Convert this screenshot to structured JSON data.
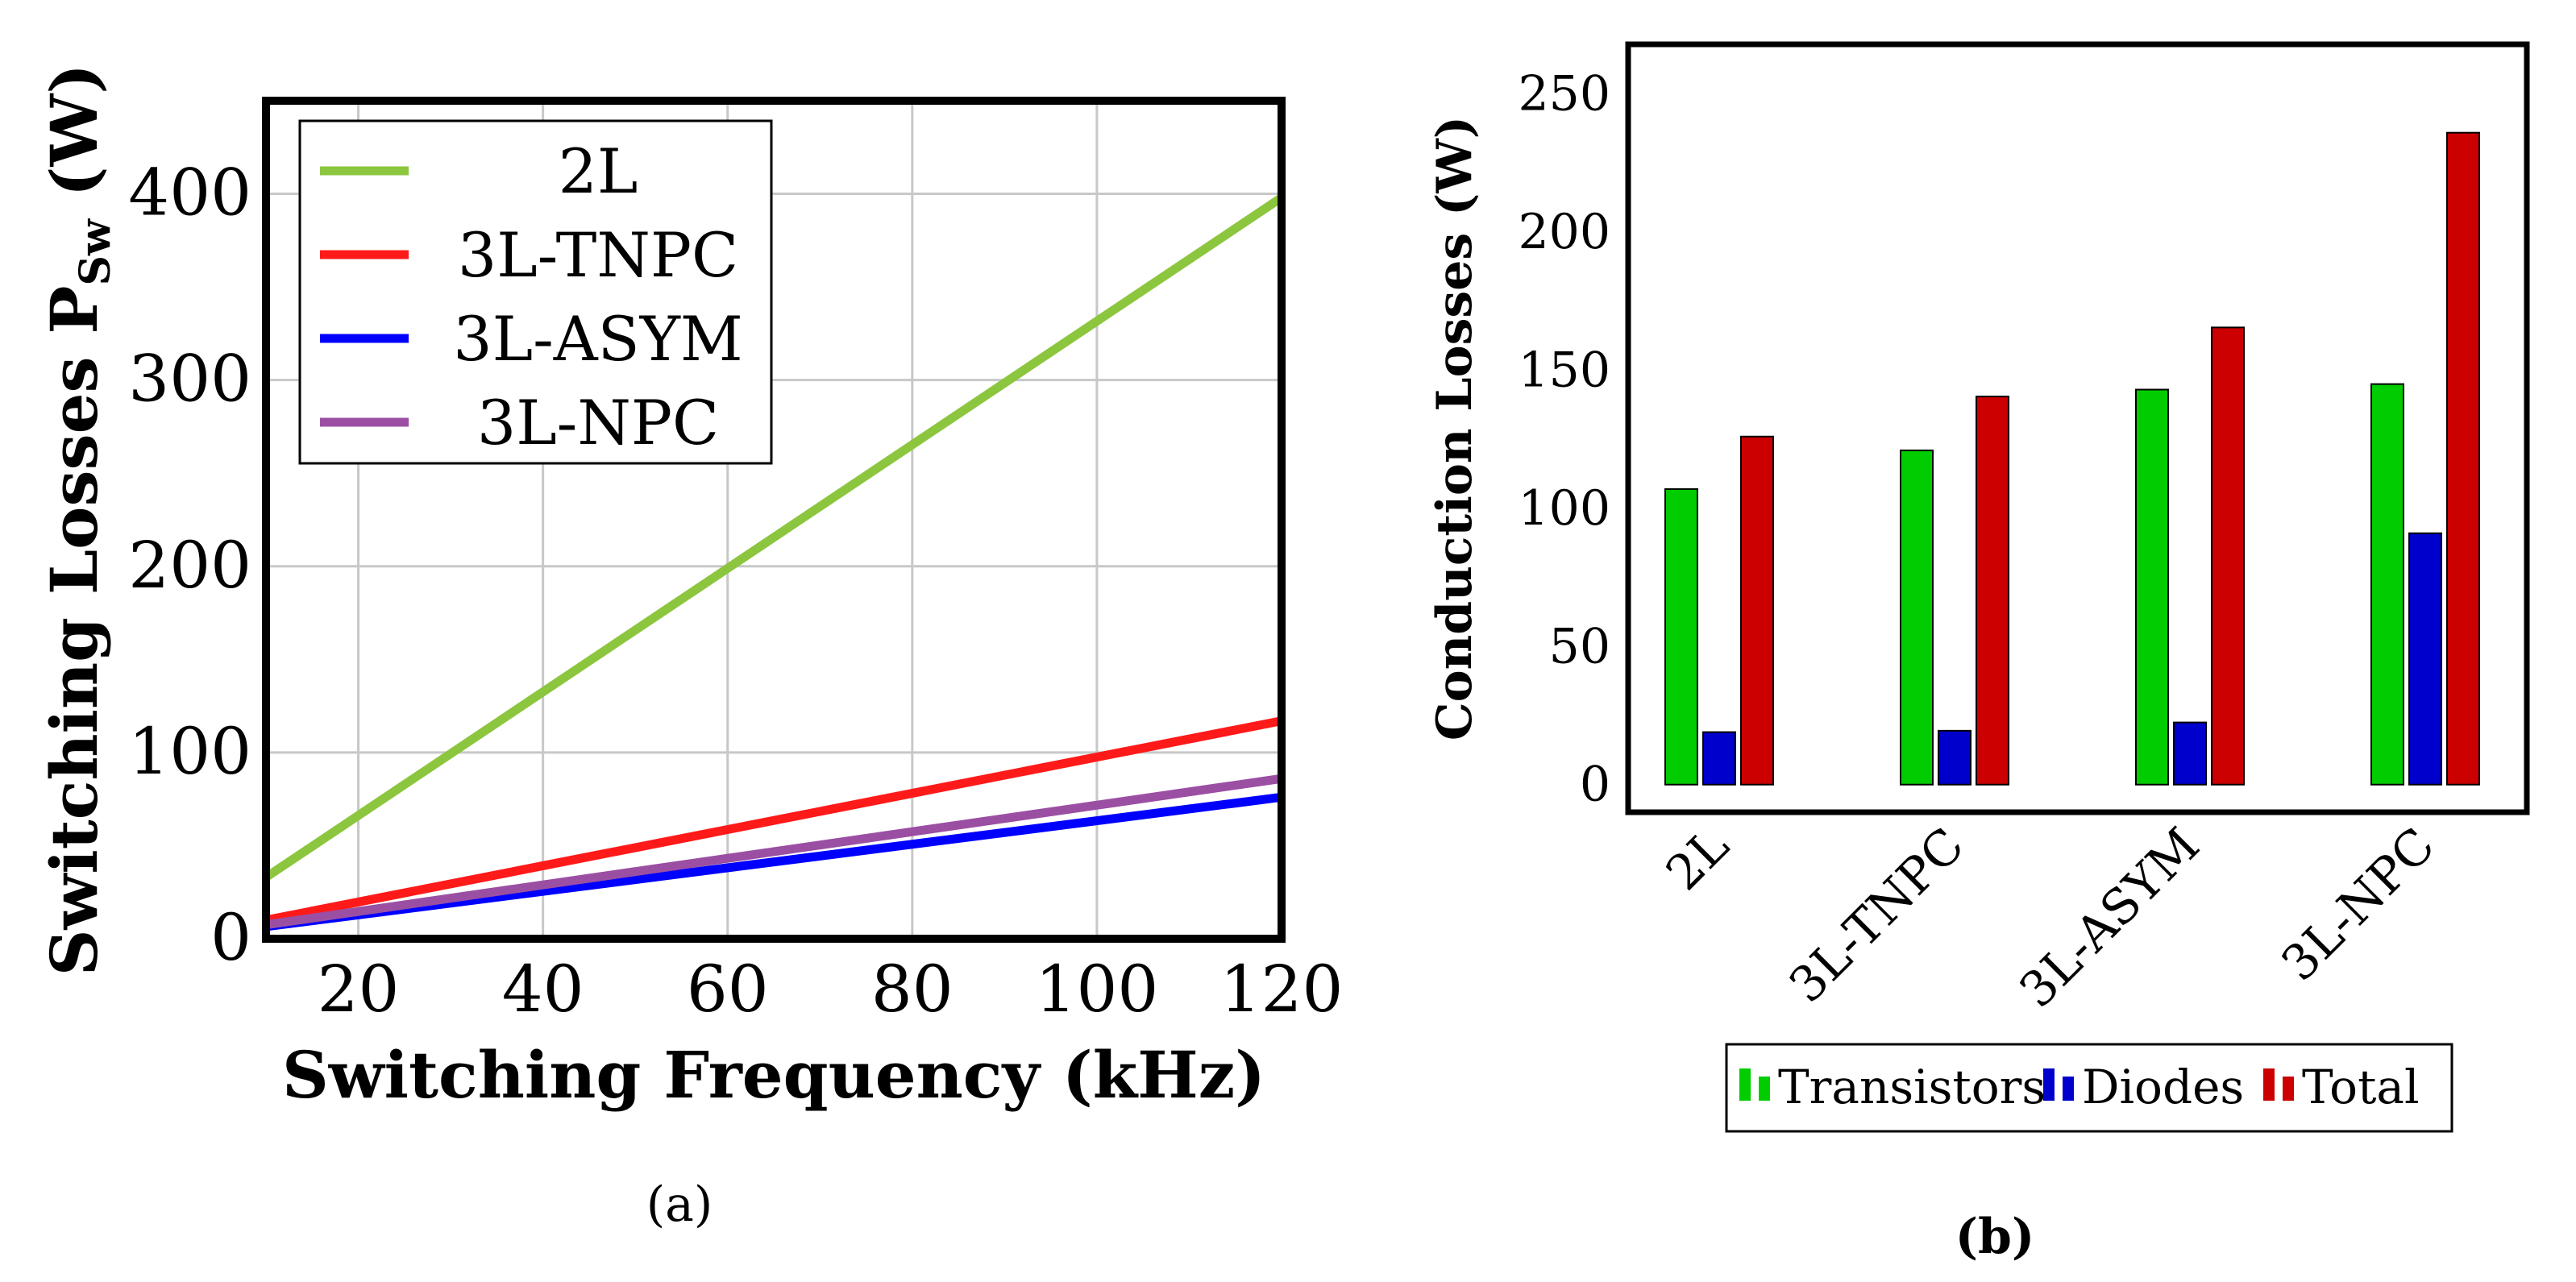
{
  "chart_data": [
    {
      "type": "line",
      "title": "",
      "xlabel": "Switching Frequency (kHz)",
      "ylabel": "Switching Losses P",
      "ylabel_subscript": "Sw",
      "ylabel_unit": "(W)",
      "xlim": [
        10,
        120
      ],
      "ylim": [
        0,
        450
      ],
      "xticks": [
        20,
        40,
        60,
        80,
        100,
        120
      ],
      "yticks": [
        0,
        100,
        200,
        300,
        400
      ],
      "grid": true,
      "legend_position": "top-left",
      "x": [
        10,
        120
      ],
      "series": [
        {
          "name": "2L",
          "color": "#8cc63f",
          "values": [
            33,
            398
          ]
        },
        {
          "name": "3L-TNPC",
          "color": "#ff1a1a",
          "values": [
            10,
            117
          ]
        },
        {
          "name": "3L-ASYM",
          "color": "#0000ff",
          "values": [
            6.5,
            76
          ]
        },
        {
          "name": "3L-NPC",
          "color": "#9b4fa3",
          "values": [
            7.5,
            86
          ]
        }
      ],
      "caption": "(a)"
    },
    {
      "type": "bar",
      "title": "",
      "xlabel": "",
      "ylabel": "Conduction Losses (W)",
      "ylim": [
        -10,
        268
      ],
      "yticks": [
        0,
        50,
        100,
        150,
        200,
        250
      ],
      "grid": false,
      "legend_position": "bottom",
      "categories": [
        "2L",
        "3L-TNPC",
        "3L-ASYM",
        "3L-NPC"
      ],
      "series": [
        {
          "name": "Transistors",
          "color": "#00cc00",
          "values": [
            107,
            121,
            143,
            145
          ]
        },
        {
          "name": "Diodes",
          "color": "#0000cc",
          "values": [
            19,
            19.5,
            22.5,
            91
          ]
        },
        {
          "name": "Total",
          "color": "#cc0000",
          "values": [
            126,
            140.5,
            165.5,
            236
          ]
        }
      ],
      "caption": "(b)"
    }
  ]
}
